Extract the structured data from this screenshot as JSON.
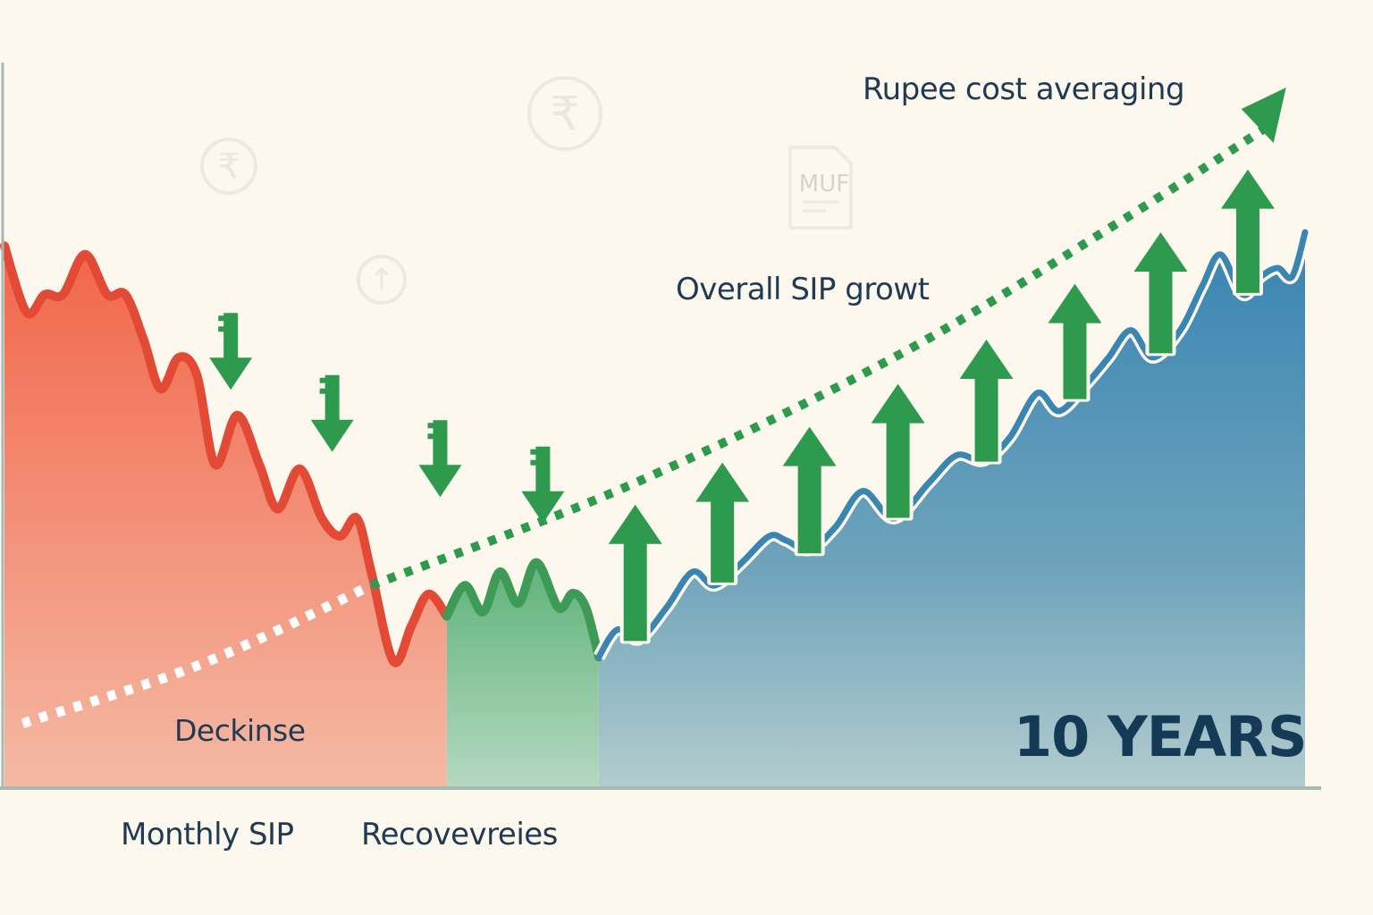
{
  "chart_data": {
    "type": "area",
    "title": "",
    "xlabel": "",
    "ylabel": "",
    "xlim": [
      0,
      10
    ],
    "ylim": [
      0,
      100
    ],
    "grid": false,
    "legend": "none",
    "duration_label": "10 YEARS",
    "labels": {
      "rupee_cost_averaging": "Rupee cost averaging",
      "overall_growth": "Overall SIP growt",
      "decline": "Deckinse",
      "monthly_sip": "Monthly SIP",
      "recoveries": "Recovevreies"
    },
    "segments": [
      {
        "label": "Deckinse",
        "from": 0,
        "to": 3.4,
        "color": "#e24a35"
      },
      {
        "label": "Recovevreies",
        "from": 3.4,
        "to": 4.57,
        "color": "#3d9a57"
      },
      {
        "label": "10 YEARS",
        "from": 4.57,
        "to": 10,
        "color": "#3a86b0"
      }
    ],
    "series": {
      "x": [
        0,
        0.17,
        0.31,
        0.45,
        0.62,
        0.79,
        0.93,
        1.07,
        1.2,
        1.34,
        1.48,
        1.62,
        1.79,
        1.96,
        2.1,
        2.27,
        2.44,
        2.58,
        2.71,
        2.82,
        2.99,
        3.13,
        3.26,
        3.4,
        3.54,
        3.68,
        3.81,
        3.95,
        4.09,
        4.26,
        4.37,
        4.47,
        4.57,
        4.71,
        4.88,
        5.09,
        5.29,
        5.46,
        5.67,
        5.88,
        6.01,
        6.19,
        6.39,
        6.6,
        6.84,
        7.11,
        7.32,
        7.53,
        7.73,
        7.94,
        8.11,
        8.32,
        8.49,
        8.66,
        8.83,
        9.04,
        9.21,
        9.35,
        9.52,
        9.66,
        9.79,
        9.9,
        10
      ],
      "y": [
        75.6,
        66.3,
        68.8,
        68.8,
        74.4,
        68.8,
        68.8,
        62.5,
        55.6,
        60,
        57.5,
        45,
        51.9,
        45,
        38.8,
        44.4,
        37.5,
        35,
        37.5,
        30,
        17.5,
        22.5,
        26.9,
        23.8,
        28.1,
        24.4,
        30,
        25.6,
        31.3,
        25,
        27,
        25,
        18.1,
        21.9,
        20.6,
        25,
        30,
        28.1,
        31.3,
        35,
        34.4,
        33.1,
        36.3,
        41.3,
        37.5,
        42.5,
        46.3,
        45.6,
        48.8,
        55,
        52.5,
        56.3,
        60,
        63.8,
        60,
        63.8,
        70,
        74.4,
        68.8,
        71.3,
        72.5,
        71.3,
        77.5
      ]
    },
    "trend": {
      "label": "Overall SIP growt",
      "style": "dotted",
      "x": [
        0.14,
        1.5,
        2.82,
        4.78,
        6.84,
        8.56,
        9.73
      ],
      "y": [
        8.8,
        17,
        28.1,
        41.9,
        60,
        78.8,
        92.5
      ],
      "color_below_split": "#ffffff",
      "color": "#2e9a4e",
      "split_x": 2.82
    },
    "sip_down_arrows": {
      "x": [
        1.74,
        2.52,
        3.35,
        4.14
      ],
      "tip": [
        55.6,
        46.9,
        40.6,
        36.9
      ],
      "icon": "rupee-arrow-down",
      "color": "#2e9a4e"
    },
    "growth_up_arrows": {
      "x": [
        4.85,
        5.52,
        6.19,
        6.87,
        7.55,
        8.23,
        8.89,
        9.56
      ],
      "tip": [
        39.4,
        45.3,
        50.3,
        56.3,
        62.5,
        70.3,
        77.5,
        86.3
      ],
      "color": "#2e9a4e"
    },
    "background_icons": [
      "rupee-coin-icon",
      "rupee-coin-icon",
      "upload-circle-icon",
      "mutual-fund-document-icon",
      "rupee-coin-icon",
      "rupee-coin-icon",
      "rupee-coin-icon"
    ],
    "mf_doc_text": "MUF",
    "rupee_symbol": "₹",
    "up_symbol": "↑",
    "colors": {
      "background": "#fcf8ee",
      "text": "#1f3a52",
      "axis": "#a8b8b4"
    }
  }
}
